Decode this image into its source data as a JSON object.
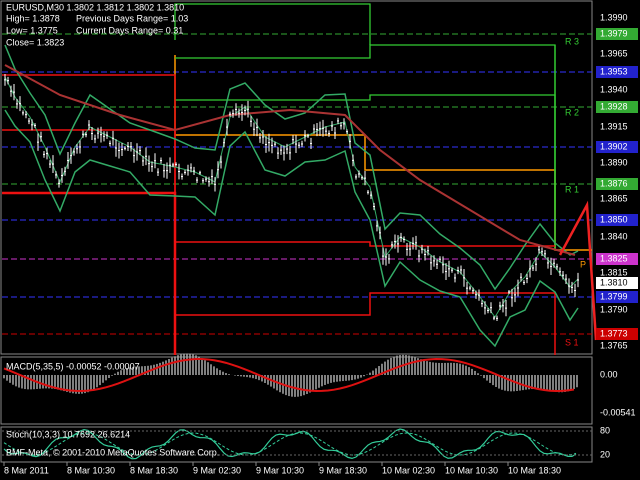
{
  "header": {
    "symbol_line": "EURUSD,M30 1.3802 1.3812 1.3802 1.3810",
    "high": "High= 1.3878",
    "low": "Low= 1.3775",
    "close": "Close= 1.3823",
    "prev_range": "Previous Days Range= 1.03",
    "cur_range": "Current Days Range= 0.31"
  },
  "price_axis": [
    "1.3990",
    "1.3979",
    "1.3965",
    "1.3953",
    "1.3940",
    "1.3928",
    "1.3915",
    "1.3902",
    "1.3890",
    "1.3876",
    "1.3865",
    "1.3850",
    "1.3840",
    "1.3825",
    "1.3815",
    "1.3810",
    "1.3799",
    "1.3790",
    "1.3773",
    "1.3765"
  ],
  "levels": [
    "R 3",
    "R 2",
    "R 1",
    "P",
    "S 1"
  ],
  "macd": {
    "label": "MACD(5,35,5) -0.00052 -0.00007",
    "axis": [
      "0.00",
      "-0.00541"
    ]
  },
  "stoch": {
    "label": "Stoch(10,3,3) 10.7692 26.6214",
    "axis": [
      "80",
      "20"
    ]
  },
  "time_axis": [
    "8 Mar 2011",
    "8 Mar 10:30",
    "8 Mar 18:30",
    "9 Mar 02:30",
    "9 Mar 10:30",
    "9 Mar 18:30",
    "10 Mar 02:30",
    "10 Mar 10:30",
    "10 Mar 18:30"
  ],
  "copyright": "BMF-Meta, © 2001-2010 MetaQuotes Software Corp."
}
